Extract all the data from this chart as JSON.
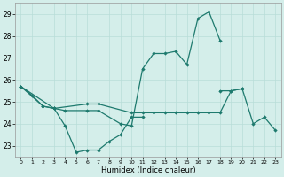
{
  "xlabel": "Humidex (Indice chaleur)",
  "xlim": [
    -0.5,
    23.5
  ],
  "ylim": [
    22.5,
    29.5
  ],
  "yticks": [
    23,
    24,
    25,
    26,
    27,
    28,
    29
  ],
  "xticks": [
    0,
    1,
    2,
    3,
    4,
    5,
    6,
    7,
    8,
    9,
    10,
    11,
    12,
    13,
    14,
    15,
    16,
    17,
    18,
    19,
    20,
    21,
    22,
    23
  ],
  "bg_color": "#d4eeea",
  "grid_color": "#b8ddd8",
  "line_color": "#1e7a6e",
  "line1_x": [
    0,
    1,
    2,
    3,
    4,
    5,
    6,
    7,
    8,
    9,
    10,
    11
  ],
  "line1_y": [
    25.7,
    25.3,
    24.8,
    24.7,
    23.9,
    22.7,
    22.8,
    22.8,
    23.2,
    23.5,
    24.3,
    24.3
  ],
  "line2_x": [
    0,
    3,
    4,
    6,
    7,
    9,
    10,
    11,
    12,
    13,
    14,
    15,
    16,
    17,
    18
  ],
  "line2_y": [
    25.7,
    24.7,
    24.6,
    24.6,
    24.6,
    24.0,
    23.9,
    26.5,
    27.2,
    27.2,
    27.3,
    26.7,
    28.8,
    29.1,
    27.8
  ],
  "line3_x": [
    0,
    2,
    3,
    6,
    7,
    10,
    11,
    12,
    13,
    14,
    15,
    16,
    17,
    18,
    19,
    20
  ],
  "line3_y": [
    25.7,
    24.8,
    24.7,
    24.9,
    24.9,
    24.5,
    24.5,
    24.5,
    24.5,
    24.5,
    24.5,
    24.5,
    24.5,
    24.5,
    25.5,
    25.6
  ],
  "line4_x": [
    18,
    19,
    20,
    21,
    22,
    23
  ],
  "line4_y": [
    25.5,
    25.5,
    25.6,
    24.0,
    24.3,
    23.7
  ]
}
